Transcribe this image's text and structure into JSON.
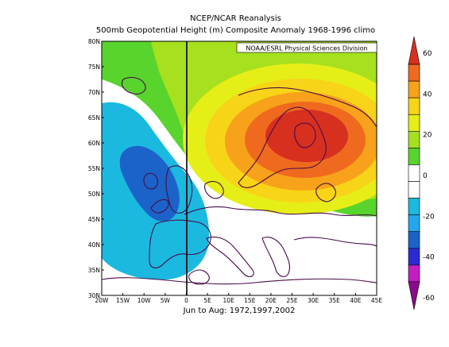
{
  "header": {
    "title": "NCEP/NCAR Reanalysis",
    "subtitle": "500mb Geopotential Height (m) Composite Anomaly 1968-1996 climo"
  },
  "map": {
    "credit": "NOAA/ESRL Physical Sciences Division",
    "caption": "Jun to Aug: 1972,1997,2002",
    "lat_labels": [
      "80N",
      "75N",
      "70N",
      "65N",
      "60N",
      "55N",
      "50N",
      "45N",
      "40N",
      "35N",
      "30N"
    ],
    "lon_labels": [
      "20W",
      "15W",
      "10W",
      "5W",
      "0",
      "5E",
      "10E",
      "15E",
      "20E",
      "25E",
      "30E",
      "35E",
      "40E",
      "45E"
    ],
    "lon_range": [
      -20,
      45
    ],
    "lat_range": [
      30,
      80
    ]
  },
  "colorbar": {
    "labels": [
      "60",
      "40",
      "20",
      "0",
      "-20",
      "-40",
      "-60"
    ],
    "colors": [
      "#d7301f",
      "#ef6a1e",
      "#f7a21a",
      "#f7d418",
      "#e6ee18",
      "#a6e01e",
      "#58d42c",
      "#ffffff",
      "#ffffff",
      "#1bb9df",
      "#24a6ef",
      "#1b63c9",
      "#2b2bd4",
      "#c21ec2",
      "#8a0b8a"
    ]
  }
}
